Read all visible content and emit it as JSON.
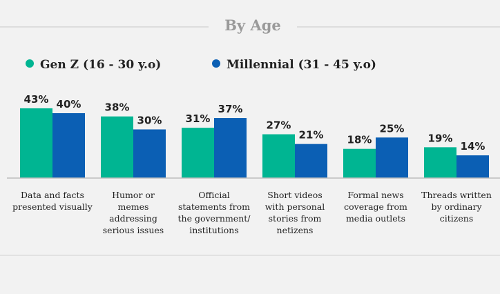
{
  "colors": {
    "genz": "#00b592",
    "millennial": "#0b5fb4"
  },
  "chart_data": {
    "type": "bar",
    "title": "By Age",
    "categories": [
      [
        "Data and facts",
        "presented visually"
      ],
      [
        "Humor or",
        "memes",
        "addressing",
        "serious issues"
      ],
      [
        "Official",
        "statements from",
        "the government/",
        "institutions"
      ],
      [
        "Short videos",
        "with personal",
        "stories from",
        "netizens"
      ],
      [
        "Formal news",
        "coverage from",
        "media outlets"
      ],
      [
        "Threads written",
        "by ordinary",
        "citizens"
      ]
    ],
    "series": [
      {
        "name": "Gen Z (16 - 30 y.o)",
        "values": [
          43,
          38,
          31,
          27,
          18,
          19
        ],
        "labels": [
          "43%",
          "38%",
          "31%",
          "27%",
          "18%",
          "19%"
        ]
      },
      {
        "name": "Millennial (31 - 45 y.o)",
        "values": [
          40,
          30,
          37,
          21,
          25,
          14
        ],
        "labels": [
          "40%",
          "30%",
          "37%",
          "21%",
          "25%",
          "14%"
        ]
      }
    ],
    "ylim": [
      0,
      45
    ],
    "legend": "top-left",
    "grid": false
  }
}
